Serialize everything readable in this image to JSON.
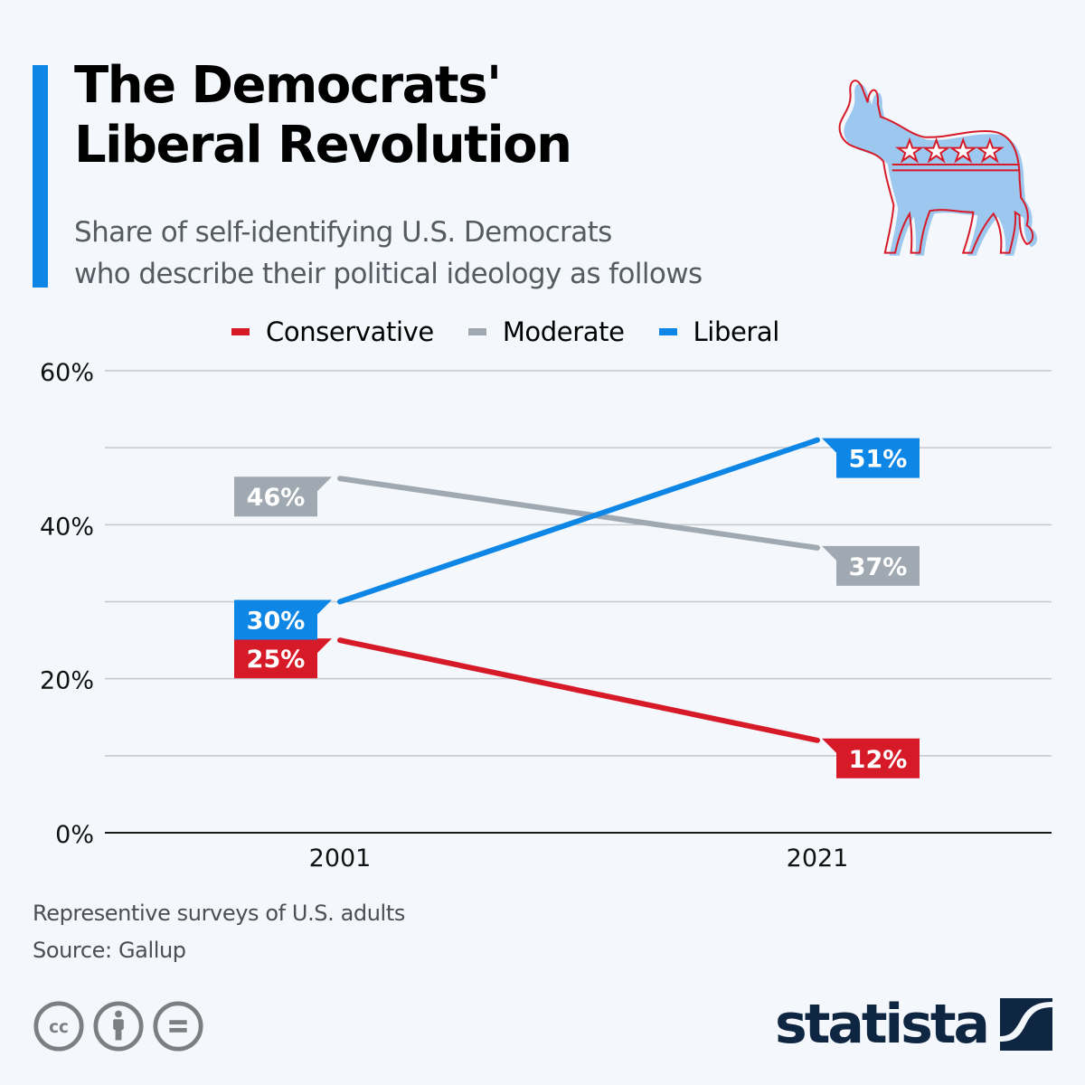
{
  "header": {
    "title_lines": [
      "The Democrats'",
      "Liberal Revolution"
    ],
    "subtitle_lines": [
      "Share of self-identifying U.S. Democrats",
      "who describe their political ideology as follows"
    ],
    "illustration": "democratic-donkey-icon"
  },
  "colors": {
    "accent": "#0d86e6",
    "conservative": "#d71a28",
    "moderate": "#a0a9b2",
    "liberal": "#0d86e6",
    "brand": "#0f2642"
  },
  "chart_data": {
    "type": "line",
    "title": "The Democrats' Liberal Revolution",
    "subtitle": "Share of self-identifying U.S. Democrats who describe their political ideology as follows",
    "x": [
      "2001",
      "2021"
    ],
    "series": [
      {
        "name": "Conservative",
        "values": [
          25,
          12
        ],
        "labels": [
          "25%",
          "12%"
        ],
        "color": "#d71a28"
      },
      {
        "name": "Moderate",
        "values": [
          46,
          37
        ],
        "labels": [
          "46%",
          "37%"
        ],
        "color": "#a0a9b2"
      },
      {
        "name": "Liberal",
        "values": [
          30,
          51
        ],
        "labels": [
          "30%",
          "51%"
        ],
        "color": "#0d86e6"
      }
    ],
    "xlabel": "",
    "ylabel": "",
    "ylim": [
      0,
      60
    ],
    "yticks": [
      0,
      10,
      20,
      30,
      40,
      50,
      60
    ],
    "ytick_labels": {
      "0": "0%",
      "20": "20%",
      "40": "40%",
      "60": "60%"
    },
    "grid": true,
    "legend": "top-center"
  },
  "footer": {
    "note": "Representive surveys of U.S. adults",
    "source": "Source: Gallup",
    "license_icons": [
      "creative-commons-icon",
      "attribution-icon",
      "no-derivatives-icon"
    ],
    "brand": "statista"
  }
}
